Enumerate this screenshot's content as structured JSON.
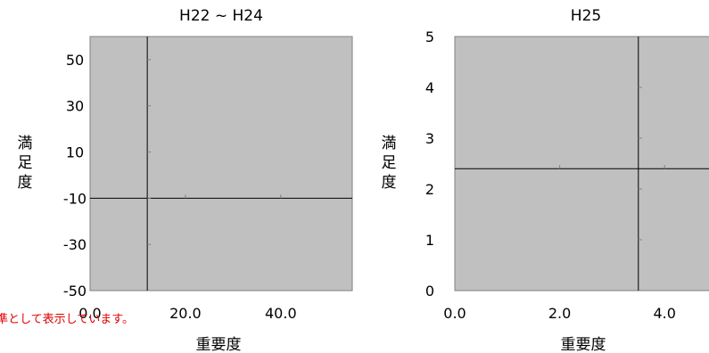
{
  "note_text": "※ 平均値を基準として表示しています。",
  "chart_data": [
    {
      "type": "scatter",
      "title": "H22 ~ H24",
      "xlabel": "重要度",
      "ylabel": "満足度",
      "xlim": [
        0,
        55
      ],
      "ylim": [
        -50,
        60
      ],
      "xticks": [
        0,
        20,
        40
      ],
      "xtick_labels": [
        "0.0",
        "20.0",
        "40.0"
      ],
      "yticks": [
        -50,
        -30,
        -10,
        10,
        30,
        50
      ],
      "ytick_labels": [
        "-50",
        "-30",
        "-10",
        "10",
        "30",
        "50"
      ],
      "ref_x": 12,
      "ref_y": -10,
      "points": [],
      "plot_bg": "#c0c0c0",
      "grid": false
    },
    {
      "type": "scatter",
      "title": "H25",
      "xlabel": "重要度",
      "ylabel": "満足度",
      "xlim": [
        0,
        5
      ],
      "ylim": [
        0,
        5
      ],
      "xticks": [
        0,
        2,
        4
      ],
      "xtick_labels": [
        "0.0",
        "2.0",
        "4.0"
      ],
      "yticks": [
        0,
        1,
        2,
        3,
        4,
        5
      ],
      "ytick_labels": [
        "0",
        "1",
        "2",
        "3",
        "4",
        "5"
      ],
      "ref_x": 3.5,
      "ref_y": 2.4,
      "points": [],
      "plot_bg": "#c0c0c0",
      "grid": false
    }
  ]
}
